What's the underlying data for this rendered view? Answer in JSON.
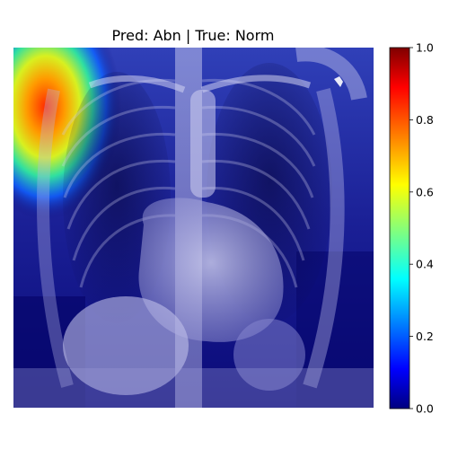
{
  "figure": {
    "title": "Pred: Abn | True: Norm",
    "prediction": "Abn",
    "ground_truth": "Norm"
  },
  "colorbar": {
    "colormap": "jet",
    "min": 0.0,
    "max": 1.0,
    "ticks": [
      {
        "value": 0.0,
        "label": "0.0"
      },
      {
        "value": 0.2,
        "label": "0.2"
      },
      {
        "value": 0.4,
        "label": "0.4"
      },
      {
        "value": 0.6,
        "label": "0.6"
      },
      {
        "value": 0.8,
        "label": "0.8"
      },
      {
        "value": 1.0,
        "label": "1.0"
      }
    ]
  },
  "colors": {
    "jet_0": "#00007f",
    "jet_1": "#0000ff",
    "jet_2": "#00ffff",
    "jet_3": "#ffff00",
    "jet_4": "#ff0000",
    "jet_5": "#7f0000"
  }
}
